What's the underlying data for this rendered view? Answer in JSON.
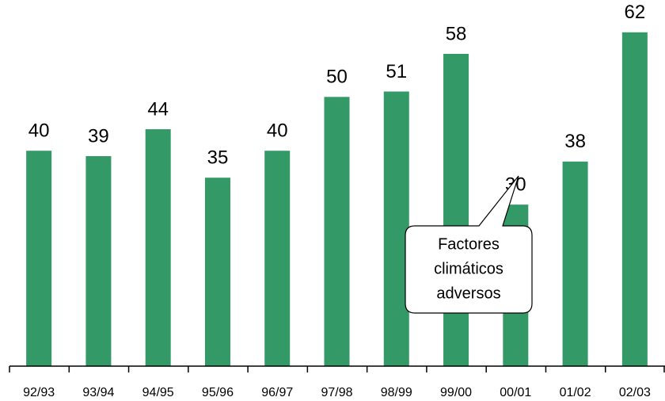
{
  "chart_data": {
    "type": "bar",
    "categories": [
      "92/93",
      "93/94",
      "94/95",
      "95/96",
      "96/97",
      "97/98",
      "98/99",
      "99/00",
      "00/01",
      "01/02",
      "02/03"
    ],
    "values": [
      40,
      39,
      44,
      35,
      40,
      50,
      51,
      58,
      30,
      38,
      62
    ],
    "color": "#339966",
    "ylim": [
      0,
      68
    ],
    "annotation": [
      "Factores",
      "climáticos",
      "adversos"
    ]
  }
}
